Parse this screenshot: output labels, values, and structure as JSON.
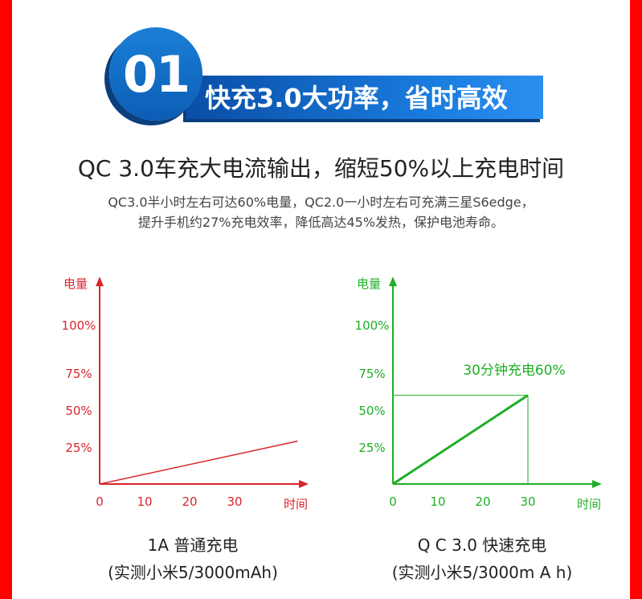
{
  "header": {
    "badge_number": "01",
    "badge_title": "快充3.0大功率，省时高效"
  },
  "headline": "QC 3.0车充大电流输出，缩短50%以上充电时间",
  "subtext": [
    "QC3.0半小时左右可达60%电量，QC2.0一小时左右可充满三星S6edge，",
    "提升手机约27%充电效率，降低高达45%发热，保护电池寿命。"
  ],
  "colors": {
    "side": "#ff0000",
    "badge": "#1270cf",
    "left_chart": "#d9262b",
    "right_chart": "#1fae27"
  },
  "chart_data": [
    {
      "type": "line",
      "ylabel": "电量",
      "xlabel": "时间",
      "x_ticks": [
        "0",
        "10",
        "20",
        "30"
      ],
      "y_ticks": [
        "25%",
        "50%",
        "75%",
        "100%"
      ],
      "series": [
        {
          "x": [
            0,
            44
          ],
          "y": [
            0,
            29
          ]
        }
      ],
      "caption": "1A 普通充电",
      "caption_sub": "(实测小米5/3000mAh)"
    },
    {
      "type": "line",
      "ylabel": "电量",
      "xlabel": "时间",
      "x_ticks": [
        "0",
        "10",
        "20",
        "30"
      ],
      "y_ticks": [
        "25%",
        "50%",
        "75%",
        "100%"
      ],
      "series": [
        {
          "x": [
            0,
            30
          ],
          "y": [
            0,
            60
          ]
        }
      ],
      "annotation": "30分钟充电60%",
      "caption": "Q C 3.0 快速充电",
      "caption_sub": "(实测小米5/3000m A h)"
    }
  ]
}
